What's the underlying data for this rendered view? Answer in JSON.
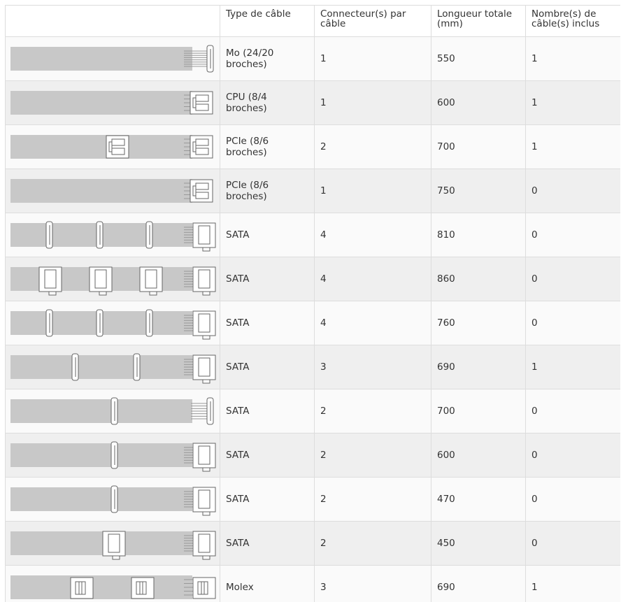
{
  "table": {
    "columns": [
      "Type de câble",
      "Connecteur(s) par câble",
      "Longueur totale (mm)",
      "Nombre(s) de câble(s) inclus"
    ],
    "rows": [
      [
        "Mo (24/20 broches)",
        1,
        550,
        1
      ],
      [
        "CPU (8/4 broches)",
        1,
        600,
        1
      ],
      [
        "PCIe (8/6 broches)",
        2,
        700,
        1
      ],
      [
        "PCIe (8/6 broches)",
        1,
        750,
        0
      ],
      [
        "SATA",
        4,
        810,
        0
      ],
      [
        "SATA",
        4,
        860,
        0
      ],
      [
        "SATA",
        4,
        760,
        0
      ],
      [
        "SATA",
        3,
        690,
        1
      ],
      [
        "SATA",
        2,
        700,
        0
      ],
      [
        "SATA",
        2,
        600,
        0
      ],
      [
        "SATA",
        2,
        470,
        0
      ],
      [
        "SATA",
        2,
        450,
        0
      ],
      [
        "Molex",
        3,
        690,
        1
      ]
    ]
  }
}
